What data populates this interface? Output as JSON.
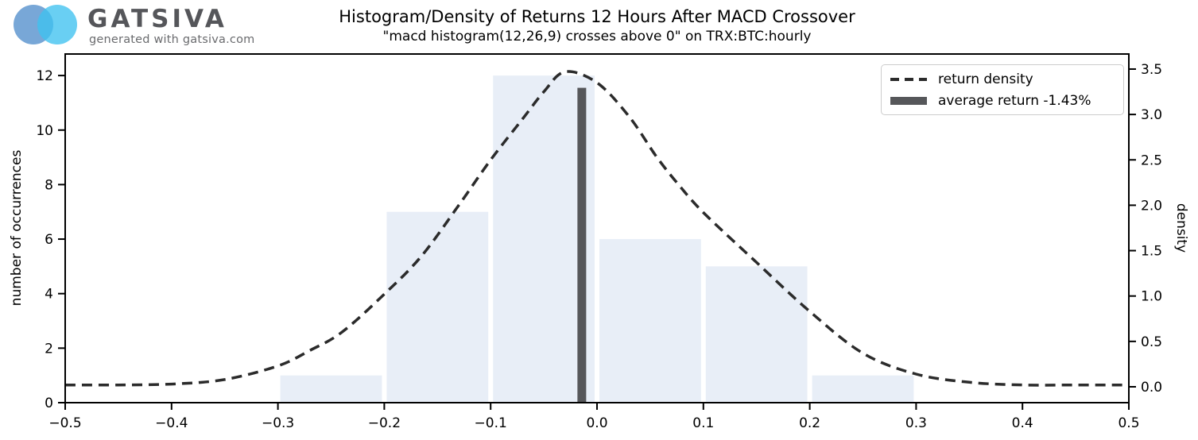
{
  "logo": {
    "brand": "GATSIVA",
    "tagline": "generated with gatsiva.com"
  },
  "title": "Histogram/Density of Returns 12 Hours After MACD Crossover",
  "subtitle": "\"macd histogram(12,26,9) crosses above 0\" on TRX:BTC:hourly",
  "colors": {
    "bar_fill": "#e8eef7",
    "density_curve": "#2b2b2b",
    "average_line": "#56575a",
    "frame": "#000000",
    "tick": "#000000",
    "legend_border": "#cccccc",
    "logo_circle_left": "#6C9FD4",
    "logo_circle_right": "#3FC1F0",
    "brand_text": "#55565A",
    "tagline_text": "#6A6B6E"
  },
  "chart_data": {
    "type": "bar",
    "subtype": "histogram_with_density_overlay",
    "title": "Histogram/Density of Returns 12 Hours After MACD Crossover",
    "subtitle": "\"macd histogram(12,26,9) crosses above 0\" on TRX:BTC:hourly",
    "xlabel": "",
    "ylabel_left": "number of occurrences",
    "ylabel_right": "density",
    "xlim": [
      -0.5,
      0.5
    ],
    "ylim_left": [
      0,
      12.79
    ],
    "ylim_right": [
      -0.175,
      3.666
    ],
    "grid": false,
    "legend_position": "upper right",
    "x_ticks": [
      -0.5,
      -0.4,
      -0.3,
      -0.2,
      -0.1,
      0.0,
      0.1,
      0.2,
      0.3,
      0.4,
      0.5
    ],
    "x_tick_labels": [
      "−0.5",
      "−0.4",
      "−0.3",
      "−0.2",
      "−0.1",
      "0.0",
      "0.1",
      "0.2",
      "0.3",
      "0.4",
      "0.5"
    ],
    "y_ticks_left": [
      0,
      2,
      4,
      6,
      8,
      10,
      12
    ],
    "y_tick_labels_left": [
      "0",
      "2",
      "4",
      "6",
      "8",
      "10",
      "12"
    ],
    "y_ticks_right": [
      0.0,
      0.5,
      1.0,
      1.5,
      2.0,
      2.5,
      3.0,
      3.5
    ],
    "y_tick_labels_right": [
      "0.0",
      "0.5",
      "1.0",
      "1.5",
      "2.0",
      "2.5",
      "3.0",
      "3.5"
    ],
    "histogram": {
      "bin_edges": [
        -0.3,
        -0.2,
        -0.1,
        0.0,
        0.1,
        0.2,
        0.3
      ],
      "counts": [
        1,
        7,
        12,
        6,
        5,
        1
      ]
    },
    "density_curve": {
      "name": "return density",
      "points": [
        [
          -0.5,
          0.02
        ],
        [
          -0.45,
          0.02
        ],
        [
          -0.4,
          0.03
        ],
        [
          -0.35,
          0.08
        ],
        [
          -0.3,
          0.23
        ],
        [
          -0.27,
          0.4
        ],
        [
          -0.24,
          0.6
        ],
        [
          -0.2,
          1.02
        ],
        [
          -0.165,
          1.44
        ],
        [
          -0.13,
          2.0
        ],
        [
          -0.1,
          2.5
        ],
        [
          -0.07,
          2.95
        ],
        [
          -0.05,
          3.25
        ],
        [
          -0.03,
          3.47
        ],
        [
          0.0,
          3.35
        ],
        [
          0.03,
          2.98
        ],
        [
          0.055,
          2.55
        ],
        [
          0.075,
          2.25
        ],
        [
          0.1,
          1.92
        ],
        [
          0.15,
          1.37
        ],
        [
          0.2,
          0.83
        ],
        [
          0.25,
          0.37
        ],
        [
          0.3,
          0.14
        ],
        [
          0.35,
          0.05
        ],
        [
          0.4,
          0.02
        ],
        [
          0.45,
          0.02
        ],
        [
          0.5,
          0.02
        ]
      ]
    },
    "average_return": {
      "value": -0.0143,
      "value_percent": "-1.43%",
      "bar_top_occurrences": 11.55
    },
    "legend": [
      {
        "swatch": "dashed-line",
        "label": "return density"
      },
      {
        "swatch": "thick-line",
        "label": "average return -1.43%"
      }
    ]
  }
}
